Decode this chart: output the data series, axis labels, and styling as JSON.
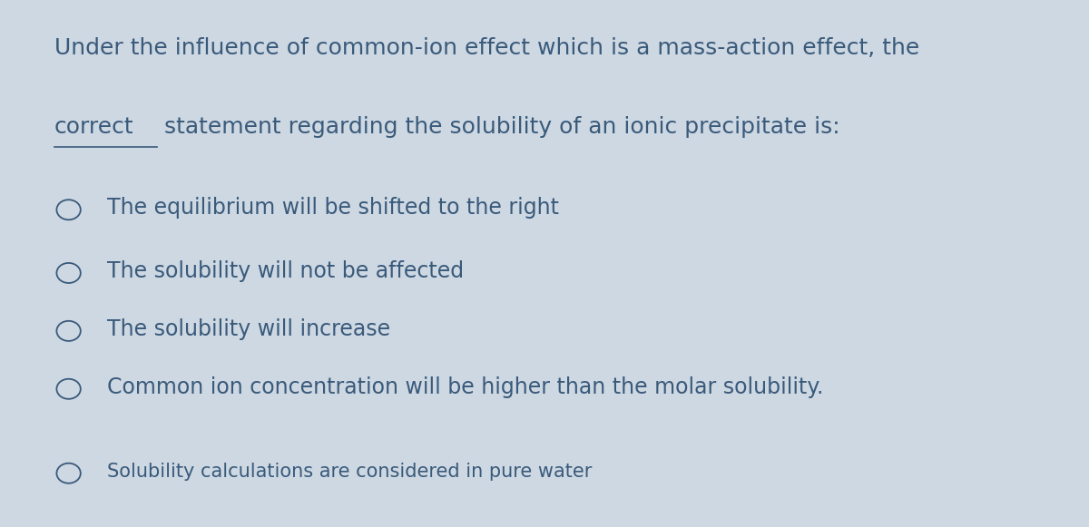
{
  "background_color": "#cdd8e3",
  "text_color": "#3a5a7a",
  "question_line1": "Under the influence of common-ion effect which is a mass-action effect, the",
  "question_line2_underline": "correct",
  "question_line2_normal": " statement regarding the solubility of an ionic precipitate is:",
  "options": [
    "The equilibrium will be shifted to the right",
    "The solubility will not be affected",
    "The solubility will increase",
    "Common ion concentration will be higher than the molar solubility.",
    "Solubility calculations are considered in pure water"
  ],
  "option_font_sizes": [
    17,
    17,
    17,
    17,
    15
  ],
  "question_fontsize": 18,
  "fig_width": 12.0,
  "fig_height": 5.81
}
